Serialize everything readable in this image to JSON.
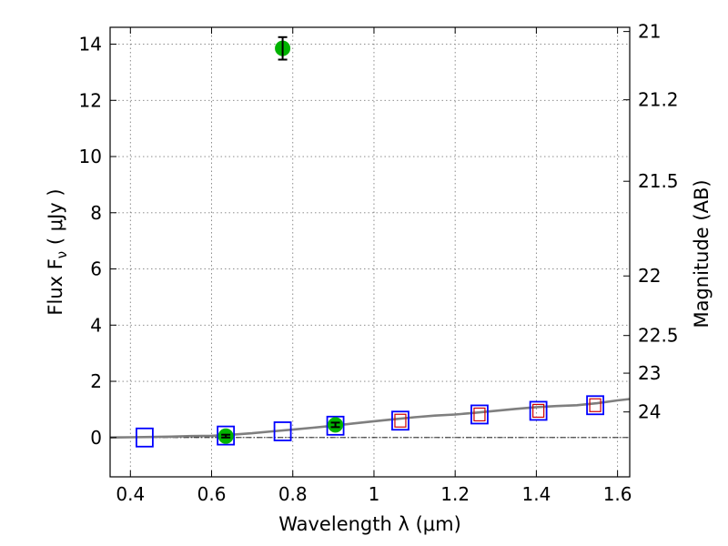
{
  "chart_data": {
    "type": "scatter",
    "xlabel": "Wavelength  λ (μm)",
    "ylabel": "Flux  F",
    "ylabel_subscript": "ν",
    "ylabel_unit": "  ( μJy )",
    "y2label": "Magnitude (AB)",
    "xlim": [
      0.35,
      1.63
    ],
    "ylim": [
      -1.4,
      14.6
    ],
    "x_ticks": [
      0.4,
      0.6,
      0.8,
      1.0,
      1.2,
      1.4,
      1.6
    ],
    "x_tick_labels": [
      "0.4",
      "0.6",
      "0.8",
      "1",
      "1.2",
      "1.4",
      "1.6"
    ],
    "y_ticks": [
      0,
      2,
      4,
      6,
      8,
      10,
      12,
      14
    ],
    "y_tick_labels": [
      "0",
      "2",
      "4",
      "6",
      "8",
      "10",
      "12",
      "14"
    ],
    "y2_ticks": [
      {
        "label": "21",
        "flux": 14.45
      },
      {
        "label": "21.2",
        "flux": 12.02
      },
      {
        "label": "21.5",
        "flux": 9.12
      },
      {
        "label": "22",
        "flux": 5.75
      },
      {
        "label": "22.5",
        "flux": 3.63
      },
      {
        "label": "23",
        "flux": 2.29
      },
      {
        "label": "24",
        "flux": 0.91
      }
    ],
    "grid": true,
    "grid_style": "dotted",
    "colors": {
      "observed": "#00b300",
      "model_box": "#0000ff",
      "model_inner": "#cc0000",
      "spectrum": "#7f7f7f",
      "axes": "#000000",
      "grid": "#7f7f7f"
    },
    "series": [
      {
        "marker": "circle",
        "x": [
          0.635,
          0.775,
          0.905
        ],
        "y": [
          0.05,
          13.85,
          0.45
        ],
        "yerr": [
          0.05,
          0.4,
          0.08
        ]
      },
      {
        "marker": "square",
        "x": [
          0.435,
          0.635,
          0.775,
          0.905,
          1.065,
          1.26,
          1.405,
          1.545
        ],
        "y": [
          0.0,
          0.07,
          0.22,
          0.42,
          0.6,
          0.82,
          0.95,
          1.15
        ],
        "inner_red": [
          false,
          false,
          false,
          false,
          true,
          true,
          true,
          true
        ]
      },
      {
        "marker": "line",
        "x": [
          0.35,
          0.4,
          0.45,
          0.5,
          0.55,
          0.6,
          0.65,
          0.7,
          0.75,
          0.8,
          0.85,
          0.9,
          0.95,
          1.0,
          1.05,
          1.1,
          1.15,
          1.2,
          1.25,
          1.3,
          1.35,
          1.4,
          1.45,
          1.5,
          1.55,
          1.6,
          1.63
        ],
        "y": [
          0.0,
          0.01,
          0.02,
          0.03,
          0.05,
          0.06,
          0.1,
          0.15,
          0.22,
          0.28,
          0.35,
          0.42,
          0.5,
          0.58,
          0.65,
          0.72,
          0.78,
          0.82,
          0.88,
          0.95,
          1.02,
          1.08,
          1.12,
          1.15,
          1.22,
          1.32,
          1.37
        ]
      }
    ]
  }
}
